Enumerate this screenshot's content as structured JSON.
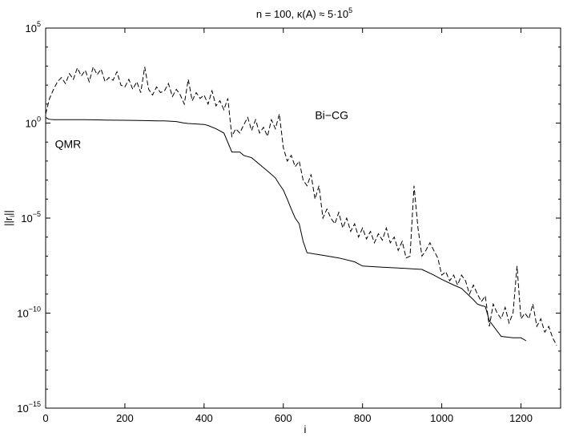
{
  "chart_data": {
    "type": "line",
    "title": "n = 100,  κ(A) ≈ 5·10",
    "title_exponent": "5",
    "xlabel": "i",
    "ylabel": "||r",
    "ylabel_sub": "i",
    "ylabel_end": "||",
    "xlim": [
      0,
      1300
    ],
    "ylim": [
      1e-15,
      100000
    ],
    "yscale": "log",
    "grid": false,
    "xticks": [
      0,
      200,
      400,
      600,
      800,
      1000,
      1200
    ],
    "yticks": [
      {
        "value": 100000,
        "base": "10",
        "exp": "5"
      },
      {
        "value": 1,
        "base": "10",
        "exp": "0"
      },
      {
        "value": 1e-05,
        "base": "10",
        "exp": "−5"
      },
      {
        "value": 1e-10,
        "base": "10",
        "exp": "−10"
      },
      {
        "value": 1e-15,
        "base": "10",
        "exp": "−15"
      }
    ],
    "series": [
      {
        "name": "QMR",
        "style": "solid",
        "color": "#000000",
        "x": [
          0,
          8,
          20,
          50,
          100,
          150,
          200,
          250,
          280,
          300,
          330,
          350,
          360,
          380,
          400,
          410,
          430,
          450,
          470,
          490,
          500,
          520,
          560,
          580,
          590,
          600,
          610,
          620,
          630,
          640,
          650,
          660,
          700,
          740,
          780,
          800,
          850,
          900,
          950,
          980,
          1000,
          1030,
          1050,
          1080,
          1090,
          1100,
          1110,
          1120,
          1150,
          1180,
          1200,
          1213
        ],
        "y": [
          2.0,
          1.6,
          1.5,
          1.5,
          1.5,
          1.45,
          1.4,
          1.35,
          1.3,
          1.3,
          1.2,
          1.0,
          0.95,
          0.9,
          0.85,
          0.75,
          0.5,
          0.3,
          0.03,
          0.03,
          0.02,
          0.015,
          0.003,
          0.0013,
          0.0006,
          0.0003,
          0.0001,
          3e-05,
          1e-05,
          5e-06,
          6e-07,
          1.5e-07,
          1.1e-07,
          8e-08,
          5e-08,
          3e-08,
          2.6e-08,
          2.3e-08,
          2e-08,
          1e-08,
          6e-09,
          3e-09,
          2e-09,
          5e-10,
          3e-10,
          2.5e-10,
          2.2e-10,
          4e-11,
          6e-12,
          5e-12,
          5e-12,
          3.5e-12
        ]
      },
      {
        "name": "Bi−CG",
        "style": "dashed",
        "color": "#000000",
        "x": [
          0,
          10,
          20,
          30,
          40,
          50,
          60,
          70,
          80,
          90,
          100,
          110,
          120,
          130,
          140,
          150,
          160,
          170,
          180,
          190,
          200,
          210,
          220,
          230,
          240,
          250,
          260,
          270,
          280,
          290,
          300,
          310,
          320,
          330,
          340,
          350,
          360,
          370,
          380,
          390,
          400,
          410,
          420,
          430,
          440,
          450,
          460,
          470,
          480,
          490,
          500,
          510,
          520,
          530,
          540,
          550,
          560,
          570,
          580,
          590,
          600,
          610,
          620,
          630,
          640,
          650,
          660,
          670,
          680,
          690,
          700,
          710,
          720,
          730,
          740,
          750,
          760,
          770,
          780,
          790,
          800,
          810,
          820,
          830,
          840,
          850,
          860,
          870,
          880,
          890,
          900,
          910,
          920,
          930,
          940,
          950,
          960,
          970,
          980,
          990,
          1000,
          1010,
          1020,
          1030,
          1040,
          1050,
          1060,
          1070,
          1080,
          1090,
          1100,
          1110,
          1120,
          1130,
          1140,
          1150,
          1160,
          1170,
          1180,
          1190,
          1200,
          1210,
          1220,
          1230,
          1240,
          1250,
          1260,
          1270,
          1280,
          1290
        ],
        "y": [
          3,
          20,
          60,
          150,
          250,
          120,
          400,
          200,
          800,
          300,
          600,
          150,
          900,
          350,
          700,
          150,
          250,
          180,
          500,
          100,
          80,
          200,
          60,
          150,
          40,
          900,
          60,
          30,
          80,
          40,
          50,
          120,
          25,
          60,
          30,
          10,
          200,
          15,
          40,
          20,
          30,
          10,
          50,
          8,
          15,
          5,
          20,
          0.2,
          0.5,
          0.3,
          0.8,
          2,
          0.4,
          1.5,
          0.3,
          0.6,
          0.2,
          1.5,
          0.5,
          3,
          0.05,
          0.01,
          0.02,
          0.005,
          0.01,
          0.001,
          0.0005,
          0.002,
          0.0001,
          0.0005,
          1e-05,
          3e-05,
          1e-05,
          5e-06,
          2e-05,
          3e-06,
          1e-05,
          2e-06,
          5e-06,
          1e-06,
          3e-06,
          8e-07,
          2e-06,
          5e-07,
          1.5e-06,
          7e-07,
          3e-06,
          5e-07,
          1e-06,
          2e-07,
          6e-07,
          8e-08,
          1e-07,
          0.0005,
          3e-06,
          1e-07,
          2e-07,
          5e-07,
          2e-07,
          8e-08,
          1e-08,
          1.5e-08,
          5e-09,
          1e-08,
          3e-09,
          1e-08,
          5e-09,
          1e-09,
          3e-09,
          1e-09,
          4e-10,
          8e-10,
          2e-11,
          3e-10,
          1e-10,
          5e-11,
          2e-10,
          3e-11,
          1e-10,
          3e-08,
          5e-11,
          1e-10,
          5e-11,
          3e-10,
          2e-11,
          5e-11,
          1e-11,
          2e-11,
          5e-12,
          2e-12
        ]
      }
    ],
    "annotations": [
      {
        "text": "QMR",
        "x": 80,
        "y": 0.05
      },
      {
        "text": "Bi−CG",
        "x": 680,
        "y": 1.6
      }
    ]
  }
}
